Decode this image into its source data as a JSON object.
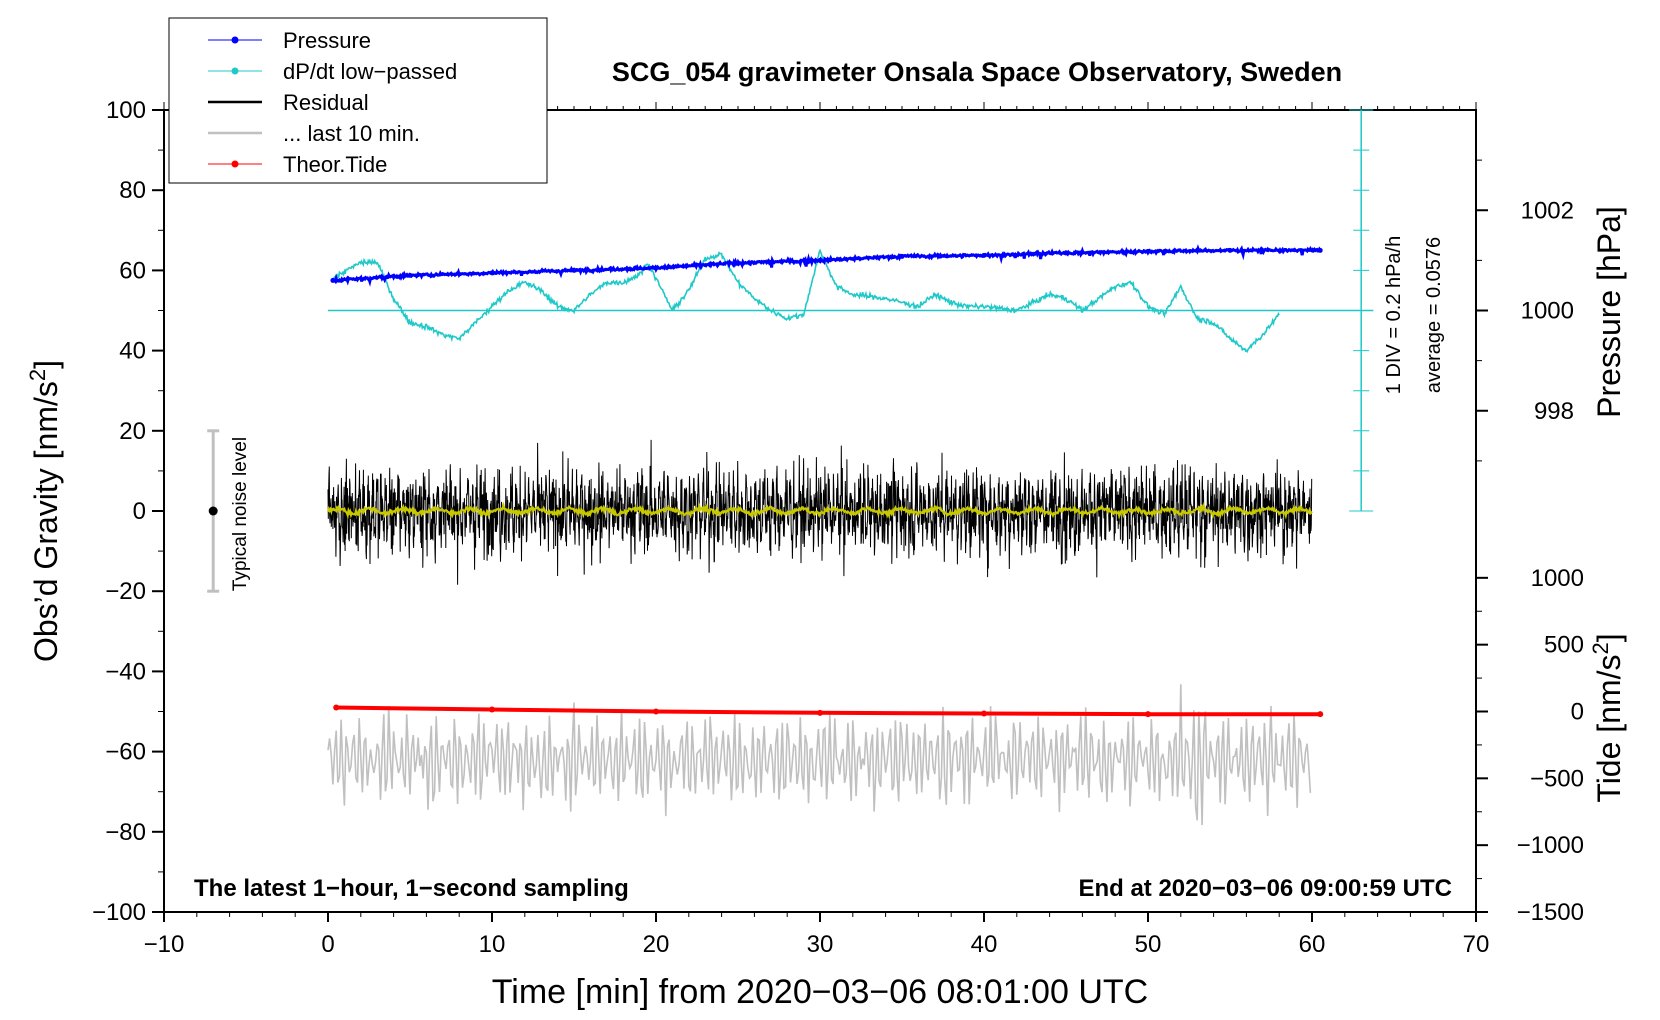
{
  "chart_data": {
    "type": "line",
    "title": "SCG_054 gravimeter Onsala Space Observatory, Sweden",
    "xlabel": "Time [min] from 2020−03−06 08:01:00 UTC",
    "ylabel": "Obs’d Gravity [nm/s",
    "ylabel_sup": "2",
    "ylabel_close": "]",
    "xlim": [
      -10,
      70
    ],
    "ylim": [
      -100,
      100
    ],
    "x_ticks": [
      -10,
      0,
      10,
      20,
      30,
      40,
      50,
      60,
      70
    ],
    "x_tick_labels": [
      "−10",
      "0",
      "10",
      "20",
      "30",
      "40",
      "50",
      "60",
      "70"
    ],
    "y_ticks": [
      -100,
      -80,
      -60,
      -40,
      -20,
      0,
      20,
      40,
      60,
      80,
      100
    ],
    "y_tick_labels": [
      "−100",
      "−80",
      "−60",
      "−40",
      "−20",
      "0",
      "20",
      "40",
      "60",
      "80",
      "100"
    ],
    "pressure_axis": {
      "label": "Pressure [hPa]",
      "ticks": [
        998,
        1000,
        1002
      ],
      "tick_labels": [
        "998",
        "1000",
        "1002"
      ],
      "range": [
        996,
        1004
      ]
    },
    "tide_axis": {
      "label": "Tide [nm/s",
      "label_sup": "2",
      "label_close": "]",
      "ticks": [
        -1500,
        -1000,
        -500,
        0,
        500,
        1000
      ],
      "tick_labels": [
        "−1500",
        "−1000",
        "−500",
        "0",
        "500",
        "1000"
      ],
      "range": [
        -1500,
        1000
      ]
    },
    "dpdt_scale": {
      "label1": "1 DIV = 0.2 hPa/h",
      "label2": "average = 0.0576",
      "divisions": 10
    },
    "noise_bar": {
      "label": "Typical noise level",
      "x": -7,
      "center": 0,
      "half_range": 20
    },
    "legend": {
      "position": "top-left",
      "entries": [
        {
          "label": "Pressure",
          "color": "#0000ff",
          "marker": true
        },
        {
          "label": "dP/dt low−passed",
          "color": "#20c8c8",
          "marker": true
        },
        {
          "label": "Residual",
          "color": "#000000",
          "marker": false
        },
        {
          "label": "... last 10 min.",
          "color": "#c0c0c0",
          "marker": false
        },
        {
          "label": "Theor.Tide",
          "color": "#ff0000",
          "marker": true
        }
      ]
    },
    "footer_left": "The latest 1−hour, 1−second sampling",
    "footer_right": "End at 2020−03−06 09:00:59 UTC",
    "series": [
      {
        "name": "Pressure",
        "units": "hPa",
        "color": "#0000ff",
        "x": [
          0.3,
          5,
          10,
          15,
          20,
          25,
          30,
          35,
          40,
          45,
          50,
          55,
          60.5
        ],
        "values": [
          1000.6,
          1000.7,
          1000.75,
          1000.8,
          1000.85,
          1000.95,
          1001.0,
          1001.08,
          1001.1,
          1001.15,
          1001.18,
          1001.2,
          1001.2
        ]
      },
      {
        "name": "dP/dt low-passed",
        "units": "gravity-axis nm/s2 (scale 1 DIV = 0.2 hPa/h)",
        "color": "#20c8c8",
        "x": [
          0.3,
          2,
          3,
          4,
          5,
          6,
          7,
          8,
          8.5,
          10,
          11,
          12,
          13,
          14,
          15,
          16,
          17,
          18,
          19,
          19.5,
          20.5,
          21,
          22,
          23,
          24,
          25,
          26,
          27,
          28,
          29,
          30,
          31,
          32,
          34,
          36,
          37,
          38,
          39,
          40,
          42,
          44,
          45,
          46,
          48,
          49,
          50,
          51,
          52,
          53,
          54,
          55,
          56,
          57,
          58
        ],
        "values": [
          58,
          62,
          62,
          53,
          47,
          46,
          44,
          43,
          45,
          51,
          55,
          57,
          55,
          51,
          50,
          54,
          57,
          57,
          59,
          62,
          54,
          50,
          55,
          63,
          64,
          57,
          53,
          50,
          48,
          49,
          65,
          56,
          54,
          53,
          51,
          54,
          52,
          51,
          51,
          50,
          54,
          53,
          50,
          56,
          57,
          51,
          49,
          56,
          48,
          47,
          43,
          40,
          44,
          49
        ]
      },
      {
        "name": "Residual",
        "units": "nm/s2",
        "color": "#000000",
        "x_range": [
          0,
          60
        ],
        "mean": 0,
        "approx_amplitude": 20
      },
      {
        "name": "Residual smoothed",
        "units": "nm/s2",
        "color": "#c8c800",
        "x_range": [
          0,
          60
        ],
        "mean": 0
      },
      {
        "name": "... last 10 min.",
        "units": "nm/s2",
        "color": "#c0c0c0",
        "x_range": [
          0,
          60
        ],
        "mean": -62,
        "approx_min": -78,
        "approx_max": -42
      },
      {
        "name": "Theor.Tide",
        "units": "nm/s2 (tide axis)",
        "color": "#ff0000",
        "x": [
          0.5,
          10,
          20,
          30,
          40,
          50,
          60.5
        ],
        "values": [
          30,
          15,
          0,
          -10,
          -15,
          -20,
          -20
        ]
      }
    ]
  }
}
